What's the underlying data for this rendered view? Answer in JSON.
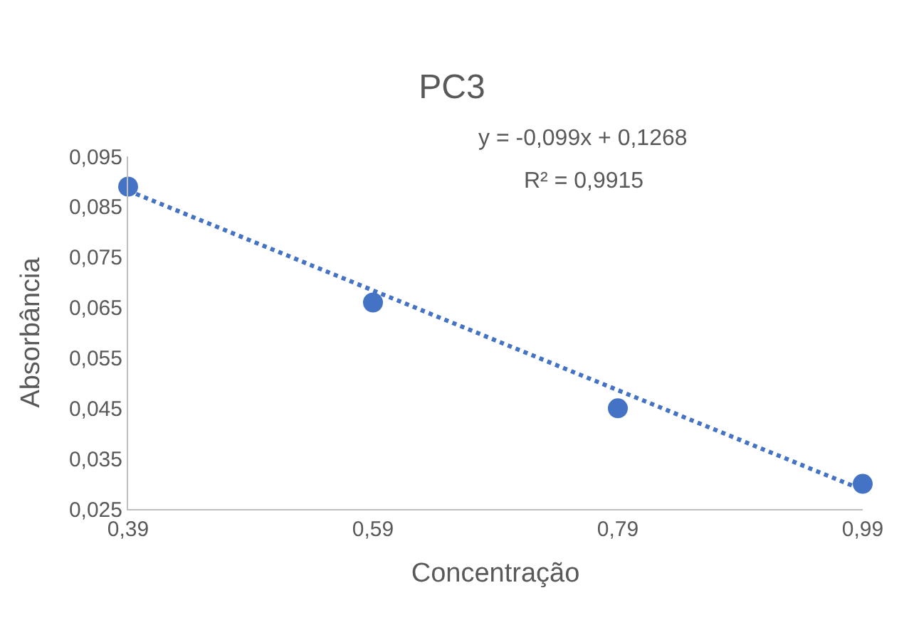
{
  "chart_data": {
    "type": "scatter",
    "title": "PC3",
    "xlabel": "Concentração",
    "ylabel": "Absorbância",
    "x": [
      0.39,
      0.59,
      0.79,
      0.99
    ],
    "series": [
      {
        "color": "#4472c4",
        "marker": "circle",
        "values": [
          0.089,
          0.066,
          0.045,
          0.03
        ]
      },
      {
        "type": "line",
        "color": "#4472c4",
        "marker": "none",
        "line_style": "dotted",
        "x": [
          0.39,
          0.99
        ],
        "values": [
          0.0882,
          0.0288
        ]
      }
    ],
    "xlim": [
      0.39,
      0.99
    ],
    "ylim": [
      0.025,
      0.095
    ],
    "xticks": [
      {
        "value": 0.39,
        "label": "0,39"
      },
      {
        "value": 0.59,
        "label": "0,59"
      },
      {
        "value": 0.79,
        "label": "0,79"
      },
      {
        "value": 0.99,
        "label": "0,99"
      }
    ],
    "yticks": [
      {
        "value": 0.025,
        "label": "0,025"
      },
      {
        "value": 0.035,
        "label": "0,035"
      },
      {
        "value": 0.045,
        "label": "0,045"
      },
      {
        "value": 0.055,
        "label": "0,055"
      },
      {
        "value": 0.065,
        "label": "0,065"
      },
      {
        "value": 0.075,
        "label": "0,075"
      },
      {
        "value": 0.085,
        "label": "0,085"
      },
      {
        "value": 0.095,
        "label": "0,095"
      }
    ],
    "grid": false,
    "annotations": [
      "y = -0,099x + 0,1268",
      "R² = 0,9915"
    ]
  }
}
